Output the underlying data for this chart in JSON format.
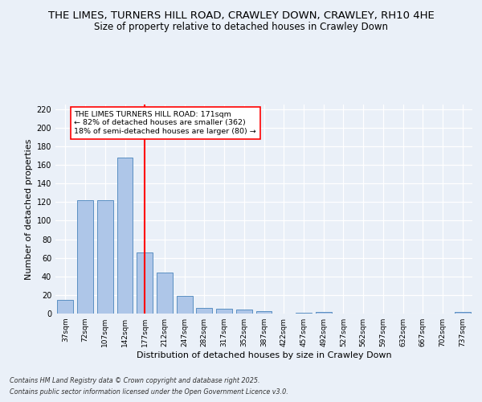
{
  "title_line1": "THE LIMES, TURNERS HILL ROAD, CRAWLEY DOWN, CRAWLEY, RH10 4HE",
  "title_line2": "Size of property relative to detached houses in Crawley Down",
  "xlabel": "Distribution of detached houses by size in Crawley Down",
  "ylabel": "Number of detached properties",
  "categories": [
    "37sqm",
    "72sqm",
    "107sqm",
    "142sqm",
    "177sqm",
    "212sqm",
    "247sqm",
    "282sqm",
    "317sqm",
    "352sqm",
    "387sqm",
    "422sqm",
    "457sqm",
    "492sqm",
    "527sqm",
    "562sqm",
    "597sqm",
    "632sqm",
    "667sqm",
    "702sqm",
    "737sqm"
  ],
  "values": [
    15,
    122,
    122,
    168,
    66,
    44,
    19,
    6,
    5,
    4,
    3,
    0,
    1,
    2,
    0,
    0,
    0,
    0,
    0,
    0,
    2
  ],
  "bar_color": "#aec6e8",
  "bar_edge_color": "#5a8fc2",
  "vline_color": "red",
  "vline_pos": 4.0,
  "annotation_text": "THE LIMES TURNERS HILL ROAD: 171sqm\n← 82% of detached houses are smaller (362)\n18% of semi-detached houses are larger (80) →",
  "annotation_box_color": "white",
  "annotation_box_edge": "red",
  "ylim": [
    0,
    225
  ],
  "yticks": [
    0,
    20,
    40,
    60,
    80,
    100,
    120,
    140,
    160,
    180,
    200,
    220
  ],
  "bg_color": "#eaf0f8",
  "plot_bg_color": "#eaf0f8",
  "grid_color": "white",
  "footer_line1": "Contains HM Land Registry data © Crown copyright and database right 2025.",
  "footer_line2": "Contains public sector information licensed under the Open Government Licence v3.0.",
  "title_fontsize": 9.5,
  "subtitle_fontsize": 8.5,
  "tick_fontsize": 6.5,
  "label_fontsize": 8,
  "annot_fontsize": 6.8,
  "footer_fontsize": 5.8
}
